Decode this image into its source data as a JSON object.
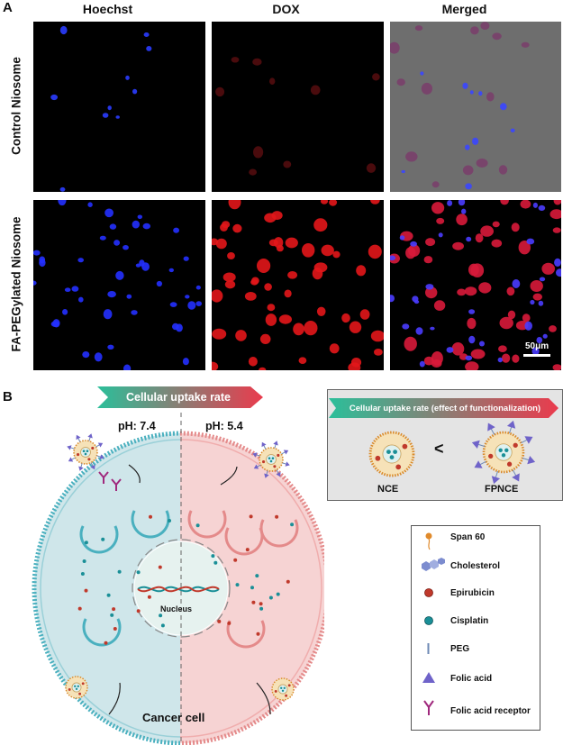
{
  "panelA": {
    "letter": "A",
    "columns": [
      "Hoechst",
      "DOX",
      "Merged"
    ],
    "rows": [
      "Control Niosome",
      "FA-PEGylated Niosome"
    ],
    "scale_bar": "50μm"
  },
  "panelB": {
    "letter": "B",
    "uptake_banner": "Cellular uptake rate",
    "ph_left": "pH: 7.4",
    "ph_right": "pH: 5.4",
    "nucleus_label": "Nucleus",
    "cell_label": "Cancer cell",
    "comparison": {
      "banner": "Cellular uptake rate (effect of functionalization)",
      "left": "NCE",
      "symbol": "<",
      "right": "FPNCE"
    },
    "legend": [
      {
        "label": "Span 60",
        "icon": "span60-icon"
      },
      {
        "label": "Cholesterol",
        "icon": "cholesterol-icon"
      },
      {
        "label": "Epirubicin",
        "icon": "epirubicin-icon"
      },
      {
        "label": "Cisplatin",
        "icon": "cisplatin-icon"
      },
      {
        "label": "PEG",
        "icon": "peg-icon"
      },
      {
        "label": "Folic acid",
        "icon": "folic-acid-icon"
      },
      {
        "label": "Folic acid receptor",
        "icon": "folic-acid-receptor-icon"
      }
    ],
    "colors": {
      "left_cell": "#cfe6ea",
      "right_cell": "#f6d3d3",
      "epirubicin": "#c0392b",
      "cisplatin": "#1a8f97",
      "folic_acid": "#6f63c9",
      "receptor": "#a0297d",
      "banner_start": "#2bbf9a",
      "banner_end": "#ea3b4d"
    }
  }
}
